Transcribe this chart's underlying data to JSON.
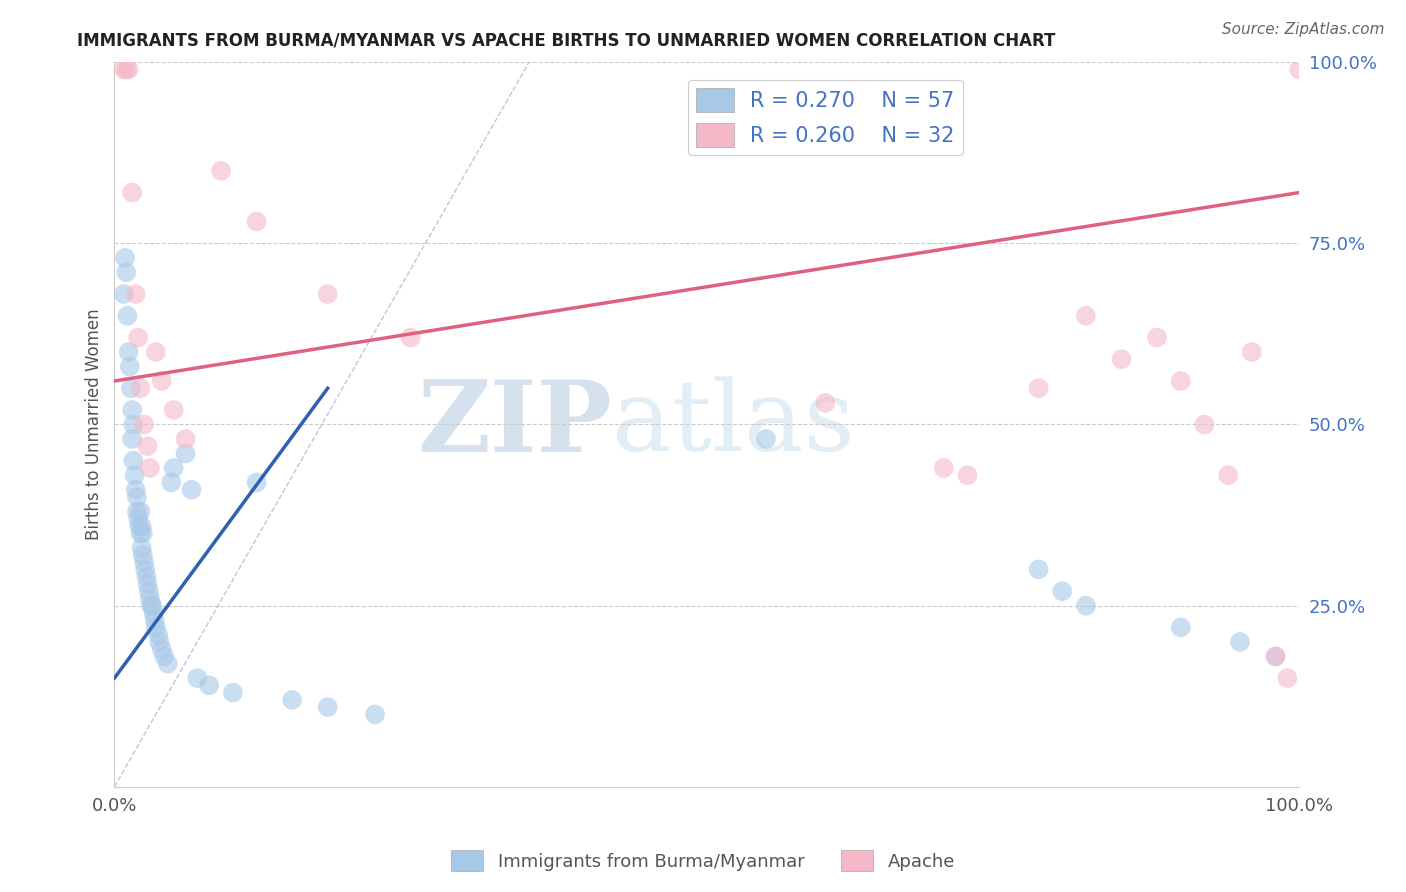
{
  "title": "IMMIGRANTS FROM BURMA/MYANMAR VS APACHE BIRTHS TO UNMARRIED WOMEN CORRELATION CHART",
  "source": "Source: ZipAtlas.com",
  "ylabel": "Births to Unmarried Women",
  "legend_label1": "Immigrants from Burma/Myanmar",
  "legend_label2": "Apache",
  "R1": 0.27,
  "N1": 57,
  "R2": 0.26,
  "N2": 32,
  "color_blue": "#a8c8e8",
  "color_pink": "#f4b8c8",
  "color_blue_line": "#3060b0",
  "color_pink_line": "#e06080",
  "watermark_zip": "ZIP",
  "watermark_atlas": "atlas",
  "blue_dots_x": [
    0.008,
    0.009,
    0.01,
    0.011,
    0.012,
    0.013,
    0.014,
    0.015,
    0.015,
    0.016,
    0.016,
    0.017,
    0.018,
    0.019,
    0.019,
    0.02,
    0.021,
    0.022,
    0.022,
    0.023,
    0.023,
    0.024,
    0.024,
    0.025,
    0.026,
    0.027,
    0.028,
    0.029,
    0.03,
    0.031,
    0.032,
    0.033,
    0.034,
    0.035,
    0.037,
    0.038,
    0.04,
    0.042,
    0.045,
    0.048,
    0.05,
    0.06,
    0.065,
    0.07,
    0.08,
    0.1,
    0.12,
    0.15,
    0.18,
    0.22,
    0.55,
    0.78,
    0.8,
    0.82,
    0.9,
    0.95,
    0.98
  ],
  "blue_dots_y": [
    0.68,
    0.73,
    0.71,
    0.65,
    0.6,
    0.58,
    0.55,
    0.52,
    0.48,
    0.5,
    0.45,
    0.43,
    0.41,
    0.38,
    0.4,
    0.37,
    0.36,
    0.35,
    0.38,
    0.33,
    0.36,
    0.32,
    0.35,
    0.31,
    0.3,
    0.29,
    0.28,
    0.27,
    0.26,
    0.25,
    0.25,
    0.24,
    0.23,
    0.22,
    0.21,
    0.2,
    0.19,
    0.18,
    0.17,
    0.42,
    0.44,
    0.46,
    0.41,
    0.15,
    0.14,
    0.13,
    0.42,
    0.12,
    0.11,
    0.1,
    0.48,
    0.3,
    0.27,
    0.25,
    0.22,
    0.2,
    0.18
  ],
  "pink_dots_x": [
    0.008,
    0.01,
    0.012,
    0.015,
    0.018,
    0.02,
    0.022,
    0.025,
    0.028,
    0.03,
    0.035,
    0.04,
    0.05,
    0.06,
    0.09,
    0.12,
    0.18,
    0.25,
    0.6,
    0.7,
    0.72,
    0.78,
    0.82,
    0.85,
    0.88,
    0.9,
    0.92,
    0.94,
    0.96,
    0.98,
    0.99,
    1.0
  ],
  "pink_dots_y": [
    0.99,
    0.99,
    0.99,
    0.82,
    0.68,
    0.62,
    0.55,
    0.5,
    0.47,
    0.44,
    0.6,
    0.56,
    0.52,
    0.48,
    0.85,
    0.78,
    0.68,
    0.62,
    0.53,
    0.44,
    0.43,
    0.55,
    0.65,
    0.59,
    0.62,
    0.56,
    0.5,
    0.43,
    0.6,
    0.18,
    0.15,
    0.99
  ],
  "blue_line_x": [
    0.0,
    0.18
  ],
  "blue_line_y": [
    0.15,
    0.55
  ],
  "pink_line_x": [
    0.0,
    1.0
  ],
  "pink_line_y": [
    0.56,
    0.82
  ],
  "diag_line_x": [
    0.0,
    0.35
  ],
  "diag_line_y": [
    0.0,
    1.0
  ],
  "xlim": [
    0.0,
    1.0
  ],
  "ylim": [
    0.0,
    1.0
  ]
}
